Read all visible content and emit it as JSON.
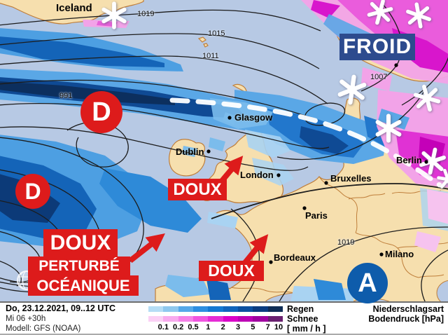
{
  "map": {
    "region_label": "Iceland",
    "cities": [
      {
        "name": "Glasgow"
      },
      {
        "name": "Dublin"
      },
      {
        "name": "London"
      },
      {
        "name": "Bruxelles"
      },
      {
        "name": "Paris"
      },
      {
        "name": "Bordeaux"
      },
      {
        "name": "Berlin"
      },
      {
        "name": "Milano"
      }
    ],
    "pressure_labels": [
      {
        "value": "1019"
      },
      {
        "value": "1015"
      },
      {
        "value": "1011"
      },
      {
        "value": "991"
      },
      {
        "value": "1007"
      },
      {
        "value": "1019"
      }
    ],
    "pressure_centers": [
      {
        "symbol": "D",
        "type": "low"
      },
      {
        "symbol": "D",
        "type": "low"
      },
      {
        "symbol": "A",
        "type": "high"
      }
    ],
    "annotations": [
      {
        "text": "FROID",
        "kind": "cold"
      },
      {
        "text": "DOUX",
        "kind": "mild"
      },
      {
        "text": "DOUX",
        "kind": "mild"
      },
      {
        "text": "PERTURBÉ",
        "kind": "mild"
      },
      {
        "text": "OCÉANIQUE",
        "kind": "mild"
      },
      {
        "text": "DOUX",
        "kind": "mild"
      }
    ],
    "colors": {
      "ocean": "#b7c9e4",
      "land": "#f6dfae",
      "coast": "#bf7e3a",
      "isobar": "#1c1c1c",
      "annotation_red": "#dd1b1b",
      "cold_box_blue": "#2d4b8e",
      "high_center_blue": "#0e5cab",
      "front_dash_white": "#ffffff"
    }
  },
  "footer": {
    "date_line": "Do, 23.12.2021, 09..12 UTC",
    "run_line": "Mi 06 +30h",
    "model_line": "Modell: GFS (NOAA)",
    "legend": {
      "rain_label": "Regen",
      "snow_label": "Schnee",
      "unit_label": "[ mm / h ]",
      "ticks": [
        "0.1",
        "0.2",
        "0.5",
        "1",
        "2",
        "3",
        "5",
        "7",
        "10"
      ],
      "rain_colors": [
        "#b5ddf5",
        "#8ec8ee",
        "#55a8e8",
        "#2d8ee0",
        "#1478d2",
        "#1064bc",
        "#0c50a0",
        "#0a3c80",
        "#0e2c55"
      ],
      "snow_colors": [
        "#fbd0f5",
        "#f8aaee",
        "#f580e8",
        "#f055e0",
        "#e52cd5",
        "#d900c8",
        "#bc00b4",
        "#a000a0",
        "#6a2070"
      ]
    },
    "type_label": "Niederschlagsart",
    "pressure_unit_label": "Bodendruck [hPa]"
  }
}
